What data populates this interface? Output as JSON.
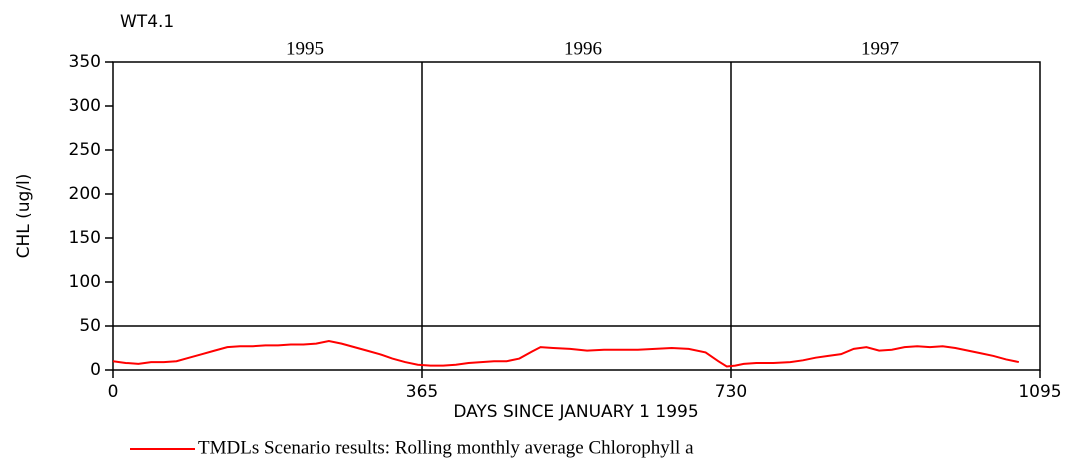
{
  "chart_data": {
    "type": "line",
    "title": "WT4.1",
    "x_label": "DAYS SINCE JANUARY 1 1995",
    "y_label": "CHL (ug/l)",
    "annotations": [
      "1995",
      "1996",
      "1997"
    ],
    "reference_lines": {
      "x": [
        365,
        730
      ],
      "y": [
        50
      ]
    },
    "xlim": [
      0,
      1095
    ],
    "xticks": [
      0,
      365,
      730,
      1095
    ],
    "ylim": [
      0,
      350
    ],
    "yticks": [
      0,
      50,
      100,
      150,
      200,
      250,
      300,
      350
    ],
    "x": [
      0,
      15,
      30,
      45,
      60,
      75,
      90,
      105,
      120,
      135,
      150,
      165,
      180,
      195,
      210,
      225,
      240,
      255,
      270,
      285,
      300,
      315,
      330,
      345,
      360,
      375,
      390,
      405,
      420,
      435,
      450,
      465,
      480,
      495,
      505,
      520,
      540,
      560,
      580,
      600,
      620,
      640,
      660,
      680,
      700,
      715,
      725,
      735,
      745,
      760,
      780,
      800,
      815,
      830,
      845,
      860,
      875,
      890,
      905,
      920,
      935,
      950,
      965,
      980,
      995,
      1010,
      1025,
      1040,
      1055,
      1070
    ],
    "series": [
      {
        "name": "TMDLs Scenario results: Rolling monthly average Chlorophyll a",
        "color": "#ff0000",
        "values": [
          10,
          8,
          7,
          9,
          9,
          10,
          14,
          18,
          22,
          26,
          27,
          27,
          28,
          28,
          29,
          29,
          30,
          33,
          30,
          26,
          22,
          18,
          13,
          9,
          6,
          5,
          5,
          6,
          8,
          9,
          10,
          10,
          13,
          21,
          26,
          25,
          24,
          22,
          23,
          23,
          23,
          24,
          25,
          24,
          20,
          10,
          4,
          5,
          7,
          8,
          8,
          9,
          11,
          14,
          16,
          18,
          24,
          26,
          22,
          23,
          26,
          27,
          26,
          27,
          25,
          22,
          19,
          16,
          12,
          9
        ]
      }
    ]
  }
}
